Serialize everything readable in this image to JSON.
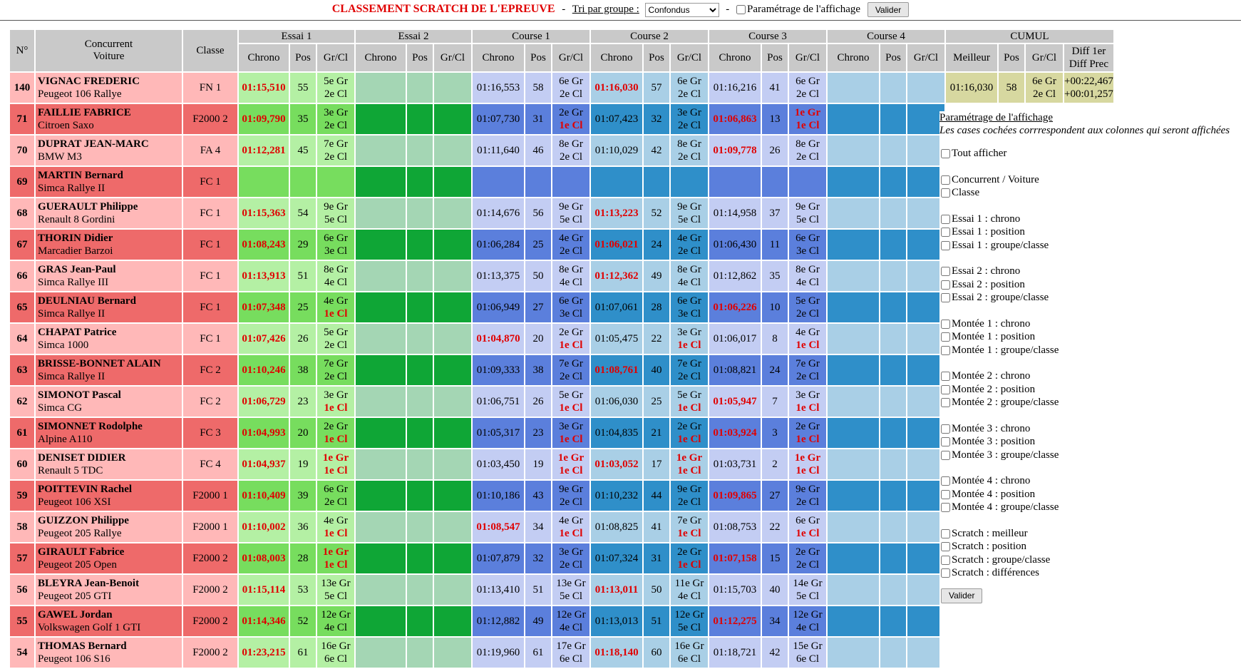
{
  "header": {
    "title": "CLASSEMENT SCRATCH DE L'EPREUVE",
    "separator": "-",
    "sort_label": "Tri par groupe :",
    "sort_selected": "Confondus",
    "settings_label": "Paramétrage de l'affichage",
    "validate_label": "Valider"
  },
  "table": {
    "groups": [
      "Essai 1",
      "Essai 2",
      "Course 1",
      "Course 2",
      "Course 3",
      "Course 4",
      "CUMUL"
    ],
    "col_num": "N°",
    "col_driver": "Concurrent",
    "col_car": "Voiture",
    "col_class": "Classe",
    "sub_chrono": "Chrono",
    "sub_pos": "Pos",
    "sub_grcl": "Gr/Cl",
    "sub_best": "Meilleur",
    "sub_diff1": "Diff 1er",
    "sub_diff2": "Diff Prec",
    "rows": [
      {
        "num": "140",
        "name": "VIGNAC FREDERIC",
        "car": "Peugeot 106 Rallye",
        "cls": "FN 1",
        "e1": {
          "t": "01:15,510",
          "best": true,
          "p": "55",
          "g": "5e Gr",
          "c": "2e Cl"
        },
        "c1": {
          "t": "01:16,553",
          "p": "58",
          "g": "6e Gr",
          "c": "2e Cl"
        },
        "c2": {
          "t": "01:16,030",
          "best": true,
          "p": "57",
          "g": "6e Gr",
          "c": "2e Cl"
        },
        "c3": {
          "t": "01:16,216",
          "p": "41",
          "g": "6e Gr",
          "c": "2e Cl"
        },
        "cum": {
          "best": "01:16,030",
          "p": "58",
          "g": "6e Gr",
          "c": "2e Cl",
          "d1": "+00:22,467",
          "d2": "+00:01,257"
        }
      },
      {
        "num": "71",
        "name": "FAILLIE FABRICE",
        "car": "Citroen Saxo",
        "cls": "F2000 2",
        "e1": {
          "t": "01:09,790",
          "best": true,
          "p": "35",
          "g": "3e Gr",
          "c": "2e Cl"
        },
        "c1": {
          "t": "01:07,730",
          "p": "31",
          "g": "2e Gr",
          "c": "1e Cl",
          "cr": true
        },
        "c2": {
          "t": "01:07,423",
          "p": "32",
          "g": "3e Gr",
          "c": "2e Cl"
        },
        "c3": {
          "t": "01:06,863",
          "best": true,
          "p": "13",
          "g": "1e Gr",
          "c": "1e Cl",
          "gr": true,
          "cr": true
        }
      },
      {
        "num": "70",
        "name": "DUPRAT JEAN-MARC",
        "car": "BMW M3",
        "cls": "FA 4",
        "e1": {
          "t": "01:12,281",
          "best": true,
          "p": "45",
          "g": "7e Gr",
          "c": "2e Cl"
        },
        "c1": {
          "t": "01:11,640",
          "p": "46",
          "g": "8e Gr",
          "c": "2e Cl"
        },
        "c2": {
          "t": "01:10,029",
          "p": "42",
          "g": "8e Gr",
          "c": "2e Cl"
        },
        "c3": {
          "t": "01:09,778",
          "best": true,
          "p": "26",
          "g": "8e Gr",
          "c": "2e Cl"
        }
      },
      {
        "num": "69",
        "name": "MARTIN Bernard",
        "car": "Simca Rallye II",
        "cls": "FC 1"
      },
      {
        "num": "68",
        "name": "GUERAULT Philippe",
        "car": "Renault 8 Gordini",
        "cls": "FC 1",
        "e1": {
          "t": "01:15,363",
          "best": true,
          "p": "54",
          "g": "9e Gr",
          "c": "5e Cl"
        },
        "c1": {
          "t": "01:14,676",
          "p": "56",
          "g": "9e Gr",
          "c": "5e Cl"
        },
        "c2": {
          "t": "01:13,223",
          "best": true,
          "p": "52",
          "g": "9e Gr",
          "c": "5e Cl"
        },
        "c3": {
          "t": "01:14,958",
          "p": "37",
          "g": "9e Gr",
          "c": "5e Cl"
        }
      },
      {
        "num": "67",
        "name": "THORIN Didier",
        "car": "Marcadier Barzoi",
        "cls": "FC 1",
        "e1": {
          "t": "01:08,243",
          "best": true,
          "p": "29",
          "g": "6e Gr",
          "c": "3e Cl"
        },
        "c1": {
          "t": "01:06,284",
          "p": "25",
          "g": "4e Gr",
          "c": "2e Cl"
        },
        "c2": {
          "t": "01:06,021",
          "best": true,
          "p": "24",
          "g": "4e Gr",
          "c": "2e Cl"
        },
        "c3": {
          "t": "01:06,430",
          "p": "11",
          "g": "6e Gr",
          "c": "3e Cl"
        }
      },
      {
        "num": "66",
        "name": "GRAS Jean-Paul",
        "car": "Simca Rallye III",
        "cls": "FC 1",
        "e1": {
          "t": "01:13,913",
          "best": true,
          "p": "51",
          "g": "8e Gr",
          "c": "4e Cl"
        },
        "c1": {
          "t": "01:13,375",
          "p": "50",
          "g": "8e Gr",
          "c": "4e Cl"
        },
        "c2": {
          "t": "01:12,362",
          "best": true,
          "p": "49",
          "g": "8e Gr",
          "c": "4e Cl"
        },
        "c3": {
          "t": "01:12,862",
          "p": "35",
          "g": "8e Gr",
          "c": "4e Cl"
        }
      },
      {
        "num": "65",
        "name": "DEULNIAU Bernard",
        "car": "Simca Rallye II",
        "cls": "FC 1",
        "e1": {
          "t": "01:07,348",
          "best": true,
          "p": "25",
          "g": "4e Gr",
          "c": "1e Cl",
          "cr": true
        },
        "c1": {
          "t": "01:06,949",
          "p": "27",
          "g": "6e Gr",
          "c": "3e Cl"
        },
        "c2": {
          "t": "01:07,061",
          "p": "28",
          "g": "6e Gr",
          "c": "3e Cl"
        },
        "c3": {
          "t": "01:06,226",
          "best": true,
          "p": "10",
          "g": "5e Gr",
          "c": "2e Cl"
        }
      },
      {
        "num": "64",
        "name": "CHAPAT Patrice",
        "car": "Simca 1000",
        "cls": "FC 1",
        "e1": {
          "t": "01:07,426",
          "best": true,
          "p": "26",
          "g": "5e Gr",
          "c": "2e Cl"
        },
        "c1": {
          "t": "01:04,870",
          "best": true,
          "p": "20",
          "g": "2e Gr",
          "c": "1e Cl",
          "cr": true
        },
        "c2": {
          "t": "01:05,475",
          "p": "22",
          "g": "3e Gr",
          "c": "1e Cl",
          "cr": true
        },
        "c3": {
          "t": "01:06,017",
          "p": "8",
          "g": "4e Gr",
          "c": "1e Cl",
          "cr": true
        }
      },
      {
        "num": "63",
        "name": "BRISSE-BONNET ALAIN",
        "car": "Simca Rallye II",
        "cls": "FC 2",
        "e1": {
          "t": "01:10,246",
          "best": true,
          "p": "38",
          "g": "7e Gr",
          "c": "2e Cl"
        },
        "c1": {
          "t": "01:09,333",
          "p": "38",
          "g": "7e Gr",
          "c": "2e Cl"
        },
        "c2": {
          "t": "01:08,761",
          "best": true,
          "p": "40",
          "g": "7e Gr",
          "c": "2e Cl"
        },
        "c3": {
          "t": "01:08,821",
          "p": "24",
          "g": "7e Gr",
          "c": "2e Cl"
        }
      },
      {
        "num": "62",
        "name": "SIMONOT Pascal",
        "car": "Simca CG",
        "cls": "FC 2",
        "e1": {
          "t": "01:06,729",
          "best": true,
          "p": "23",
          "g": "3e Gr",
          "c": "1e Cl",
          "cr": true
        },
        "c1": {
          "t": "01:06,751",
          "p": "26",
          "g": "5e Gr",
          "c": "1e Cl",
          "cr": true
        },
        "c2": {
          "t": "01:06,030",
          "p": "25",
          "g": "5e Gr",
          "c": "1e Cl",
          "cr": true
        },
        "c3": {
          "t": "01:05,947",
          "best": true,
          "p": "7",
          "g": "3e Gr",
          "c": "1e Cl",
          "cr": true
        }
      },
      {
        "num": "61",
        "name": "SIMONNET Rodolphe",
        "car": "Alpine A110",
        "cls": "FC 3",
        "e1": {
          "t": "01:04,993",
          "best": true,
          "p": "20",
          "g": "2e Gr",
          "c": "1e Cl",
          "cr": true
        },
        "c1": {
          "t": "01:05,317",
          "p": "23",
          "g": "3e Gr",
          "c": "1e Cl",
          "cr": true
        },
        "c2": {
          "t": "01:04,835",
          "p": "21",
          "g": "2e Gr",
          "c": "1e Cl",
          "cr": true
        },
        "c3": {
          "t": "01:03,924",
          "best": true,
          "p": "3",
          "g": "2e Gr",
          "c": "1e Cl",
          "cr": true
        }
      },
      {
        "num": "60",
        "name": "DENISET DIDIER",
        "car": "Renault 5 TDC",
        "cls": "FC 4",
        "e1": {
          "t": "01:04,937",
          "best": true,
          "p": "19",
          "g": "1e Gr",
          "c": "1e Cl",
          "gr": true,
          "cr": true
        },
        "c1": {
          "t": "01:03,450",
          "p": "19",
          "g": "1e Gr",
          "c": "1e Cl",
          "gr": true,
          "cr": true
        },
        "c2": {
          "t": "01:03,052",
          "best": true,
          "p": "17",
          "g": "1e Gr",
          "c": "1e Cl",
          "gr": true,
          "cr": true
        },
        "c3": {
          "t": "01:03,731",
          "p": "2",
          "g": "1e Gr",
          "c": "1e Cl",
          "gr": true,
          "cr": true
        }
      },
      {
        "num": "59",
        "name": "POITTEVIN Rachel",
        "car": "Peugeot 106 XSI",
        "cls": "F2000 1",
        "e1": {
          "t": "01:10,409",
          "best": true,
          "p": "39",
          "g": "6e Gr",
          "c": "2e Cl"
        },
        "c1": {
          "t": "01:10,186",
          "p": "43",
          "g": "9e Gr",
          "c": "2e Cl"
        },
        "c2": {
          "t": "01:10,232",
          "p": "44",
          "g": "9e Gr",
          "c": "2e Cl"
        },
        "c3": {
          "t": "01:09,865",
          "best": true,
          "p": "27",
          "g": "9e Gr",
          "c": "2e Cl"
        }
      },
      {
        "num": "58",
        "name": "GUIZZON Philippe",
        "car": "Peugeot 205 Rallye",
        "cls": "F2000 1",
        "e1": {
          "t": "01:10,002",
          "best": true,
          "p": "36",
          "g": "4e Gr",
          "c": "1e Cl",
          "cr": true
        },
        "c1": {
          "t": "01:08,547",
          "best": true,
          "p": "34",
          "g": "4e Gr",
          "c": "1e Cl",
          "cr": true
        },
        "c2": {
          "t": "01:08,825",
          "p": "41",
          "g": "7e Gr",
          "c": "1e Cl",
          "cr": true
        },
        "c3": {
          "t": "01:08,753",
          "p": "22",
          "g": "6e Gr",
          "c": "1e Cl",
          "cr": true
        }
      },
      {
        "num": "57",
        "name": "GIRAULT Fabrice",
        "car": "Peugeot 205 Open",
        "cls": "F2000 2",
        "e1": {
          "t": "01:08,003",
          "best": true,
          "p": "28",
          "g": "1e Gr",
          "c": "1e Cl",
          "gr": true,
          "cr": true
        },
        "c1": {
          "t": "01:07,879",
          "p": "32",
          "g": "3e Gr",
          "c": "2e Cl"
        },
        "c2": {
          "t": "01:07,324",
          "p": "31",
          "g": "2e Gr",
          "c": "1e Cl",
          "cr": true
        },
        "c3": {
          "t": "01:07,158",
          "best": true,
          "p": "15",
          "g": "2e Gr",
          "c": "2e Cl"
        }
      },
      {
        "num": "56",
        "name": "BLEYRA Jean-Benoit",
        "car": "Peugeot 205 GTI",
        "cls": "F2000 2",
        "e1": {
          "t": "01:15,114",
          "best": true,
          "p": "53",
          "g": "13e Gr",
          "c": "5e Cl"
        },
        "c1": {
          "t": "01:13,410",
          "p": "51",
          "g": "13e Gr",
          "c": "5e Cl"
        },
        "c2": {
          "t": "01:13,011",
          "best": true,
          "p": "50",
          "g": "11e Gr",
          "c": "4e Cl"
        },
        "c3": {
          "t": "01:15,703",
          "p": "40",
          "g": "14e Gr",
          "c": "5e Cl"
        }
      },
      {
        "num": "55",
        "name": "GAWEL Jordan",
        "car": "Volkswagen Golf 1 GTI",
        "cls": "F2000 2",
        "e1": {
          "t": "01:14,346",
          "best": true,
          "p": "52",
          "g": "12e Gr",
          "c": "4e Cl"
        },
        "c1": {
          "t": "01:12,882",
          "p": "49",
          "g": "12e Gr",
          "c": "4e Cl"
        },
        "c2": {
          "t": "01:13,013",
          "p": "51",
          "g": "12e Gr",
          "c": "5e Cl"
        },
        "c3": {
          "t": "01:12,275",
          "best": true,
          "p": "34",
          "g": "12e Gr",
          "c": "4e Cl"
        }
      },
      {
        "num": "54",
        "name": "THOMAS Bernard",
        "car": "Peugeot 106 S16",
        "cls": "F2000 2",
        "e1": {
          "t": "01:23,215",
          "best": true,
          "p": "61",
          "g": "16e Gr",
          "c": "6e Cl"
        },
        "c1": {
          "t": "01:19,960",
          "p": "61",
          "g": "17e Gr",
          "c": "6e Cl"
        },
        "c2": {
          "t": "01:18,140",
          "best": true,
          "p": "60",
          "g": "16e Gr",
          "c": "6e Cl"
        },
        "c3": {
          "t": "01:18,721",
          "p": "42",
          "g": "15e Gr",
          "c": "6e Cl"
        }
      }
    ]
  },
  "settings_panel": {
    "title": "Paramétrage de l'affichage",
    "description": "Les cases cochées corrrespondent aux colonnes qui seront affichées",
    "groups": [
      [
        "Tout afficher"
      ],
      [
        "Concurrent / Voiture",
        "Classe"
      ],
      [
        "Essai 1 : chrono",
        "Essai 1 : position",
        "Essai 1 : groupe/classe"
      ],
      [
        "Essai 2 : chrono",
        "Essai 2 : position",
        "Essai 2 : groupe/classe"
      ],
      [
        "Montée 1 : chrono",
        "Montée 1 : position",
        "Montée 1 : groupe/classe"
      ],
      [
        "Montée 2 : chrono",
        "Montée 2 : position",
        "Montée 2 : groupe/classe"
      ],
      [
        "Montée 3 : chrono",
        "Montée 3 : position",
        "Montée 3 : groupe/classe"
      ],
      [
        "Montée 4 : chrono",
        "Montée 4 : position",
        "Montée 4 : groupe/classe"
      ],
      [
        "Scratch : meilleur",
        "Scratch : position",
        "Scratch : groupe/classe",
        "Scratch : différences"
      ]
    ],
    "validate_label": "Valider"
  },
  "colors": {
    "title_red": "#e00000",
    "header_gray": "#c9c9c9",
    "row_light_pink": "#ffb8b8",
    "row_dark_red": "#ee6a6a",
    "essai1_light": "#b4f0a4",
    "essai1_dark": "#77dd5e",
    "essai2_light": "#a4d6b4",
    "essai2_dark": "#0fa636",
    "course_blue_light": "#c3cdf3",
    "course_blue_dark": "#5b7fdc",
    "course_teal_light": "#a9cfe6",
    "course_teal_dark": "#2f8fc9",
    "cumul": "#d7d8a0"
  }
}
